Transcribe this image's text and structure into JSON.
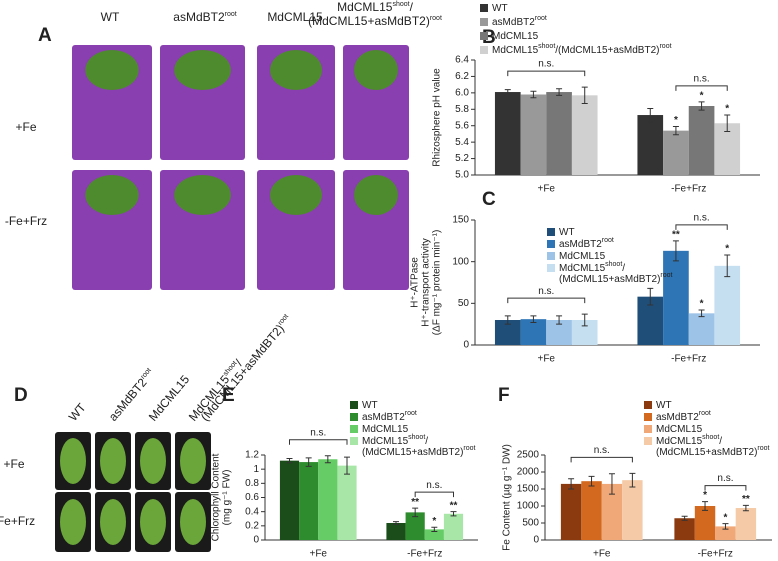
{
  "photo_panels": [
    {
      "panel_label": "A",
      "columns": [
        [
          "WT"
        ],
        [
          "asMdBT2",
          "root"
        ],
        [
          "MdCML15"
        ],
        [
          "MdCML15",
          "shoot",
          "/"
        ],
        [
          "(MdCML15+asMdBT2)",
          "root"
        ]
      ],
      "rows": [
        "+Fe",
        "-Fe+Frz"
      ]
    },
    {
      "panel_label": "D",
      "columns": [
        [
          "WT"
        ],
        [
          "asMdBT2",
          "root"
        ],
        [
          "MdCML15"
        ],
        [
          "MdCML15",
          "shoot",
          "/"
        ],
        [
          "(MdCML15+asMdBT2)",
          "root"
        ]
      ],
      "rows": [
        "+Fe",
        "-Fe+Frz"
      ]
    }
  ],
  "chart_data": [
    {
      "type": "bar",
      "panel_label": "B",
      "ylabel": [
        "Rhizosphere pH value"
      ],
      "legend": "top",
      "categories": [
        "+Fe",
        "-Fe+Frz"
      ],
      "ylim": [
        5.0,
        6.4
      ],
      "yticks": [
        {
          "value": 5.0,
          "label": "5.0"
        },
        {
          "value": 5.2,
          "label": "5.2"
        },
        {
          "value": 5.4,
          "label": "5.4"
        },
        {
          "value": 5.6,
          "label": "5.6"
        },
        {
          "value": 5.8,
          "label": "5.8"
        },
        {
          "value": 6.0,
          "label": "6.0"
        },
        {
          "value": 6.2,
          "label": "6.2"
        },
        {
          "value": 6.4,
          "label": "6.4"
        }
      ],
      "series": [
        {
          "name": [
            "WT"
          ],
          "color": "#333333",
          "values": [
            6.01,
            5.73
          ],
          "errors": [
            0.03,
            0.08
          ],
          "sig": [
            null,
            null
          ]
        },
        {
          "name": [
            "asMdBT2",
            "root"
          ],
          "color": "#999999",
          "values": [
            5.98,
            5.54
          ],
          "errors": [
            0.04,
            0.05
          ],
          "sig": [
            null,
            "*"
          ]
        },
        {
          "name": [
            "MdCML15"
          ],
          "color": "#777777",
          "values": [
            6.01,
            5.84
          ],
          "errors": [
            0.04,
            0.05
          ],
          "sig": [
            null,
            "*"
          ]
        },
        {
          "name": [
            "MdCML15",
            "shoot",
            "/(MdCML15+asMdBT2)",
            "root"
          ],
          "color": "#d0d0d0",
          "values": [
            5.97,
            5.63
          ],
          "errors": [
            0.1,
            0.1
          ],
          "sig": [
            null,
            "*"
          ]
        }
      ],
      "brackets": [
        {
          "label": "n.s.",
          "category": 0,
          "series": [
            0,
            3
          ]
        },
        {
          "label": "n.s.",
          "category": 1,
          "series": [
            1,
            3
          ]
        }
      ]
    },
    {
      "type": "bar",
      "panel_label": "C",
      "ylabel": [
        "H⁺-ATPase",
        "H⁺-transport activity",
        "(ΔF mg⁻¹ protein min⁻¹)"
      ],
      "legend": "upper left",
      "categories": [
        "+Fe",
        "-Fe+Frz"
      ],
      "ylim": [
        0,
        150
      ],
      "yticks": [
        0,
        50,
        100,
        150
      ],
      "series": [
        {
          "name": [
            "WT"
          ],
          "color": "#1f4e79",
          "values": [
            30,
            58
          ],
          "errors": [
            5,
            10
          ],
          "sig": [
            null,
            null
          ]
        },
        {
          "name": [
            "asMdBT2",
            "root"
          ],
          "color": "#2e75b6",
          "values": [
            31,
            113
          ],
          "errors": [
            4,
            12
          ],
          "sig": [
            null,
            "**"
          ]
        },
        {
          "name": [
            "MdCML15"
          ],
          "color": "#9dc3e6",
          "values": [
            30,
            38
          ],
          "errors": [
            5,
            4
          ],
          "sig": [
            null,
            "*"
          ]
        },
        {
          "name": [
            "MdCML15",
            "shoot",
            "/",
            "",
            "(MdCML15+asMdBT2)",
            "root"
          ],
          "color": "#c5dff0",
          "values": [
            30,
            95
          ],
          "errors": [
            7,
            13
          ],
          "sig": [
            null,
            "*"
          ]
        }
      ],
      "brackets": [
        {
          "label": "n.s.",
          "category": 0,
          "series": [
            0,
            3
          ]
        },
        {
          "label": "n.s.",
          "category": 1,
          "series": [
            1,
            3
          ]
        }
      ]
    },
    {
      "type": "bar",
      "panel_label": "E",
      "ylabel": [
        "Chlorophyll Content",
        "(mg g⁻¹ FW)"
      ],
      "legend": "upper right",
      "categories": [
        "+Fe",
        "-Fe+Frz"
      ],
      "ylim": [
        0,
        1.2
      ],
      "yticks": [
        0,
        0.2,
        0.4,
        0.6,
        0.8,
        1,
        1.2
      ],
      "series": [
        {
          "name": [
            "WT"
          ],
          "color": "#1a4d1a",
          "values": [
            1.12,
            0.24
          ],
          "errors": [
            0.03,
            0.02
          ],
          "sig": [
            null,
            null
          ]
        },
        {
          "name": [
            "asMdBT2",
            "root"
          ],
          "color": "#2e8b2e",
          "values": [
            1.1,
            0.39
          ],
          "errors": [
            0.06,
            0.06
          ],
          "sig": [
            null,
            "**"
          ]
        },
        {
          "name": [
            "MdCML15"
          ],
          "color": "#66cc66",
          "values": [
            1.14,
            0.15
          ],
          "errors": [
            0.05,
            0.03
          ],
          "sig": [
            null,
            "*"
          ]
        },
        {
          "name": [
            "MdCML15",
            "shoot",
            "/",
            "",
            "(MdCML15+asMdBT2)",
            "root"
          ],
          "color": "#a8e6a8",
          "values": [
            1.05,
            0.37
          ],
          "errors": [
            0.12,
            0.03
          ],
          "sig": [
            null,
            "**"
          ]
        }
      ],
      "brackets": [
        {
          "label": "n.s.",
          "category": 0,
          "series": [
            0,
            3
          ]
        },
        {
          "label": "n.s.",
          "category": 1,
          "series": [
            1,
            3
          ]
        }
      ]
    },
    {
      "type": "bar",
      "panel_label": "F",
      "ylabel": [
        "Fe Content (µg g⁻¹ DW)"
      ],
      "legend": "upper right",
      "categories": [
        "+Fe",
        "-Fe+Frz"
      ],
      "ylim": [
        0,
        2500
      ],
      "yticks": [
        0,
        500,
        1000,
        1500,
        2000,
        2500
      ],
      "series": [
        {
          "name": [
            "WT"
          ],
          "color": "#8b3a0f",
          "values": [
            1650,
            640
          ],
          "errors": [
            150,
            60
          ],
          "sig": [
            null,
            null
          ]
        },
        {
          "name": [
            "asMdBT2",
            "root"
          ],
          "color": "#d2691e",
          "values": [
            1730,
            1000
          ],
          "errors": [
            140,
            130
          ],
          "sig": [
            null,
            "*"
          ]
        },
        {
          "name": [
            "MdCML15"
          ],
          "color": "#f0a878",
          "values": [
            1650,
            400
          ],
          "errors": [
            300,
            80
          ],
          "sig": [
            null,
            "*"
          ]
        },
        {
          "name": [
            "MdCML15",
            "shoot",
            "/",
            "",
            "(MdCML15+asMdBT2)",
            "root"
          ],
          "color": "#f5cba7",
          "values": [
            1760,
            940
          ],
          "errors": [
            200,
            80
          ],
          "sig": [
            null,
            "**"
          ]
        }
      ],
      "brackets": [
        {
          "label": "n.s.",
          "category": 0,
          "series": [
            0,
            3
          ]
        },
        {
          "label": "n.s.",
          "category": 1,
          "series": [
            1,
            3
          ]
        }
      ]
    }
  ]
}
